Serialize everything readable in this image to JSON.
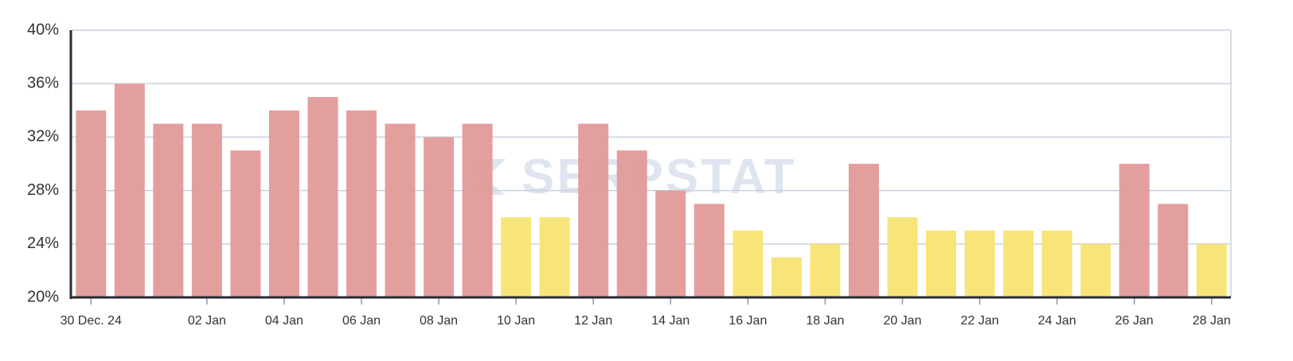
{
  "chart_data": {
    "type": "bar",
    "watermark": "SERPSTAT",
    "categories": [
      "30 Dec. 24",
      null,
      null,
      "02 Jan",
      null,
      "04 Jan",
      null,
      "06 Jan",
      null,
      "08 Jan",
      null,
      "10 Jan",
      null,
      "12 Jan",
      null,
      "14 Jan",
      null,
      "16 Jan",
      null,
      "18 Jan",
      null,
      "20 Jan",
      null,
      "22 Jan",
      null,
      "24 Jan",
      null,
      "26 Jan",
      null,
      "28 Jan"
    ],
    "values": [
      34,
      36,
      33,
      33,
      31,
      34,
      35,
      34,
      33,
      32,
      33,
      26,
      26,
      33,
      31,
      28,
      27,
      25,
      23,
      24,
      30,
      26,
      25,
      25,
      25,
      25,
      24,
      30,
      27,
      24
    ],
    "colors": [
      "#e19a98",
      "#e19a98",
      "#e19a98",
      "#e19a98",
      "#e19a98",
      "#e19a98",
      "#e19a98",
      "#e19a98",
      "#e19a98",
      "#e19a98",
      "#e19a98",
      "#f8e472",
      "#f8e472",
      "#e19a98",
      "#e19a98",
      "#e19a98",
      "#e19a98",
      "#f8e472",
      "#f8e472",
      "#f8e472",
      "#e19a98",
      "#f8e472",
      "#f8e472",
      "#f8e472",
      "#f8e472",
      "#f8e472",
      "#f8e472",
      "#e19a98",
      "#e19a98",
      "#f8e472"
    ],
    "ylim": [
      20,
      40
    ],
    "yticks": [
      {
        "value": 20,
        "label": "20%"
      },
      {
        "value": 24,
        "label": "24%"
      },
      {
        "value": 28,
        "label": "28%"
      },
      {
        "value": 32,
        "label": "32%"
      },
      {
        "value": 36,
        "label": "36%"
      },
      {
        "value": 40,
        "label": "40%"
      }
    ],
    "grid": true
  }
}
